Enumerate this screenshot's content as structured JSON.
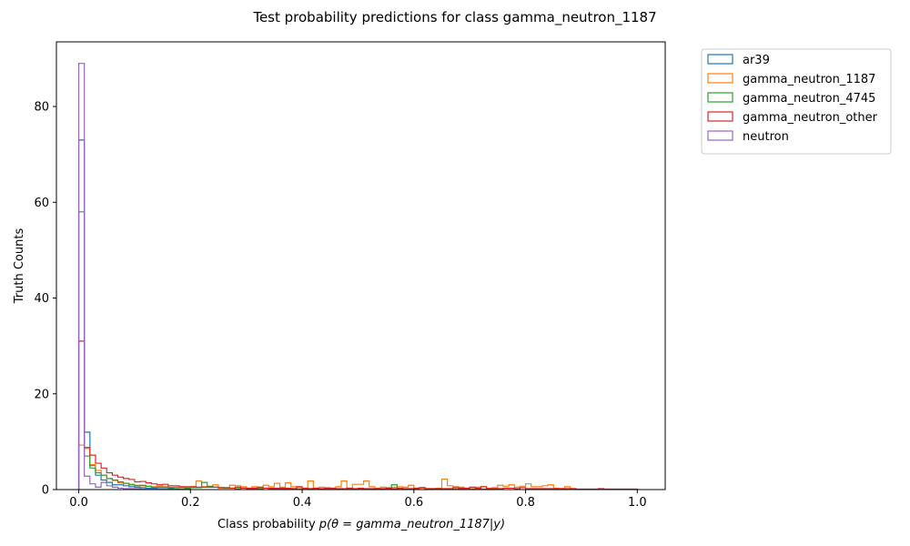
{
  "chart_data": {
    "type": "histogram-step",
    "title": "Test probability predictions for class gamma_neutron_1187",
    "xlabel_prefix": "Class probability ",
    "xlabel_math": "p(θ = gamma_neutron_1187|y)",
    "ylabel": "Truth Counts",
    "xlim": [
      -0.04,
      1.05
    ],
    "ylim": [
      0,
      93.5
    ],
    "x_ticks": [
      0.0,
      0.2,
      0.4,
      0.6,
      0.8,
      1.0
    ],
    "x_tick_labels": [
      "0.0",
      "0.2",
      "0.4",
      "0.6",
      "0.8",
      "1.0"
    ],
    "y_ticks": [
      0,
      20,
      40,
      60,
      80
    ],
    "y_tick_labels": [
      "0",
      "20",
      "40",
      "60",
      "80"
    ],
    "grid": false,
    "legend_position": "outside-top-right",
    "bin_width": 0.01,
    "series": [
      {
        "name": "ar39",
        "color": "#1f77b4",
        "values": [
          73.0,
          12.0,
          5.0,
          3.0,
          2.0,
          1.5,
          1.0,
          1.0,
          0.8,
          0.6,
          0.5,
          0.4,
          0.3,
          0.3,
          0.2,
          0.2,
          0.2,
          0.1,
          0.1,
          0.1
        ]
      },
      {
        "name": "gamma_neutron_1187",
        "color": "#ff7f0e",
        "values": [
          9.3,
          8.6,
          5.2,
          4.0,
          3.0,
          2.3,
          1.9,
          1.4,
          1.3,
          1.1,
          0.9,
          0.8,
          0.7,
          0.6,
          0.7,
          0.6,
          0.5,
          0.5,
          0.4,
          0.5,
          0.6,
          1.8,
          0.6,
          0.5,
          1.0,
          0.3,
          0.3,
          0.9,
          0.8,
          0.6,
          0.3,
          0.6,
          0.4,
          0.9,
          0.6,
          1.3,
          0.5,
          1.4,
          0.6,
          0.4,
          0.3,
          1.8,
          0.3,
          0.5,
          0.4,
          0.3,
          0.6,
          1.8,
          0.3,
          1.1,
          1.1,
          1.8,
          0.6,
          0.3,
          0.5,
          0.4,
          0.5,
          0.6,
          0.5,
          0.9,
          0.3,
          0.3,
          0.2,
          0.2,
          0.3,
          2.2,
          0.8,
          0.6,
          0.5,
          0.3,
          0.4,
          0.5,
          0.6,
          0.3,
          0.4,
          0.9,
          0.7,
          1.0,
          0.5,
          0.7,
          1.2,
          0.6,
          0.6,
          0.8,
          1.0,
          0.3,
          0.2,
          0.6,
          0.2
        ]
      },
      {
        "name": "gamma_neutron_4745",
        "color": "#2ca02c",
        "values": [
          58.0,
          7.0,
          4.5,
          3.5,
          3.0,
          2.3,
          2.0,
          1.6,
          1.3,
          1.0,
          0.8,
          0.9,
          0.7,
          0.5,
          0.5,
          0.5,
          0.4,
          0.4,
          0.5,
          0.3,
          0.4,
          0.4,
          1.5,
          0.7,
          0.5,
          0.4,
          0.3,
          0.3,
          0.2,
          0.3,
          0.2,
          0.2,
          0.2,
          0.3,
          0.2,
          0.2,
          0.2,
          0.2,
          0.2,
          0.1,
          0.2,
          0.2,
          0.1,
          0.1,
          0.1,
          0.2,
          0.1,
          0.1,
          0.1,
          0.1,
          0.2,
          0.1,
          0.1,
          0.1,
          0.1,
          0.1,
          1.0,
          0.2,
          0.1,
          0.1,
          0.1,
          0.4,
          0.1,
          0.1,
          0.1,
          0.1,
          0.1,
          0.1,
          0.1,
          0.1,
          0.1,
          0.1,
          0.1,
          0.1,
          0.1,
          0.1
        ]
      },
      {
        "name": "gamma_neutron_other",
        "color": "#d62728",
        "values": [
          31.0,
          8.8,
          7.2,
          5.5,
          4.5,
          3.5,
          3.0,
          2.6,
          2.3,
          2.1,
          1.6,
          1.7,
          1.4,
          1.2,
          1.0,
          1.1,
          0.8,
          0.8,
          0.6,
          0.6,
          0.6,
          0.5,
          0.5,
          0.5,
          0.5,
          0.4,
          0.4,
          0.3,
          0.5,
          0.3,
          0.3,
          0.3,
          0.5,
          0.3,
          0.3,
          0.3,
          0.3,
          0.3,
          0.2,
          0.6,
          0.3,
          0.2,
          0.3,
          0.2,
          0.3,
          0.3,
          0.2,
          0.2,
          0.3,
          0.2,
          0.3,
          0.2,
          0.2,
          0.2,
          0.2,
          0.3,
          0.2,
          0.3,
          0.2,
          0.2,
          0.3,
          0.4,
          0.2,
          0.2,
          0.2,
          0.2,
          0.2,
          0.4,
          0.3,
          0.3,
          0.5,
          0.3,
          0.6,
          0.2,
          0.2,
          0.2,
          0.3,
          0.3,
          0.2,
          0.4,
          0.2,
          0.2,
          0.2,
          0.2,
          0.2,
          0.2,
          0.2,
          0.2,
          0.2,
          0.1,
          0.1,
          0.1,
          0.1,
          0.2,
          0.1,
          0.1,
          0.1,
          0.1,
          0.1,
          0.1
        ]
      },
      {
        "name": "neutron",
        "color": "#9467bd",
        "values": [
          89.0,
          2.8,
          1.2,
          0.5,
          1.5,
          0.8,
          0.5,
          0.3,
          0.2,
          0.2,
          0.2,
          0.1,
          0.1,
          0.1,
          0.1,
          0.1
        ]
      }
    ]
  }
}
